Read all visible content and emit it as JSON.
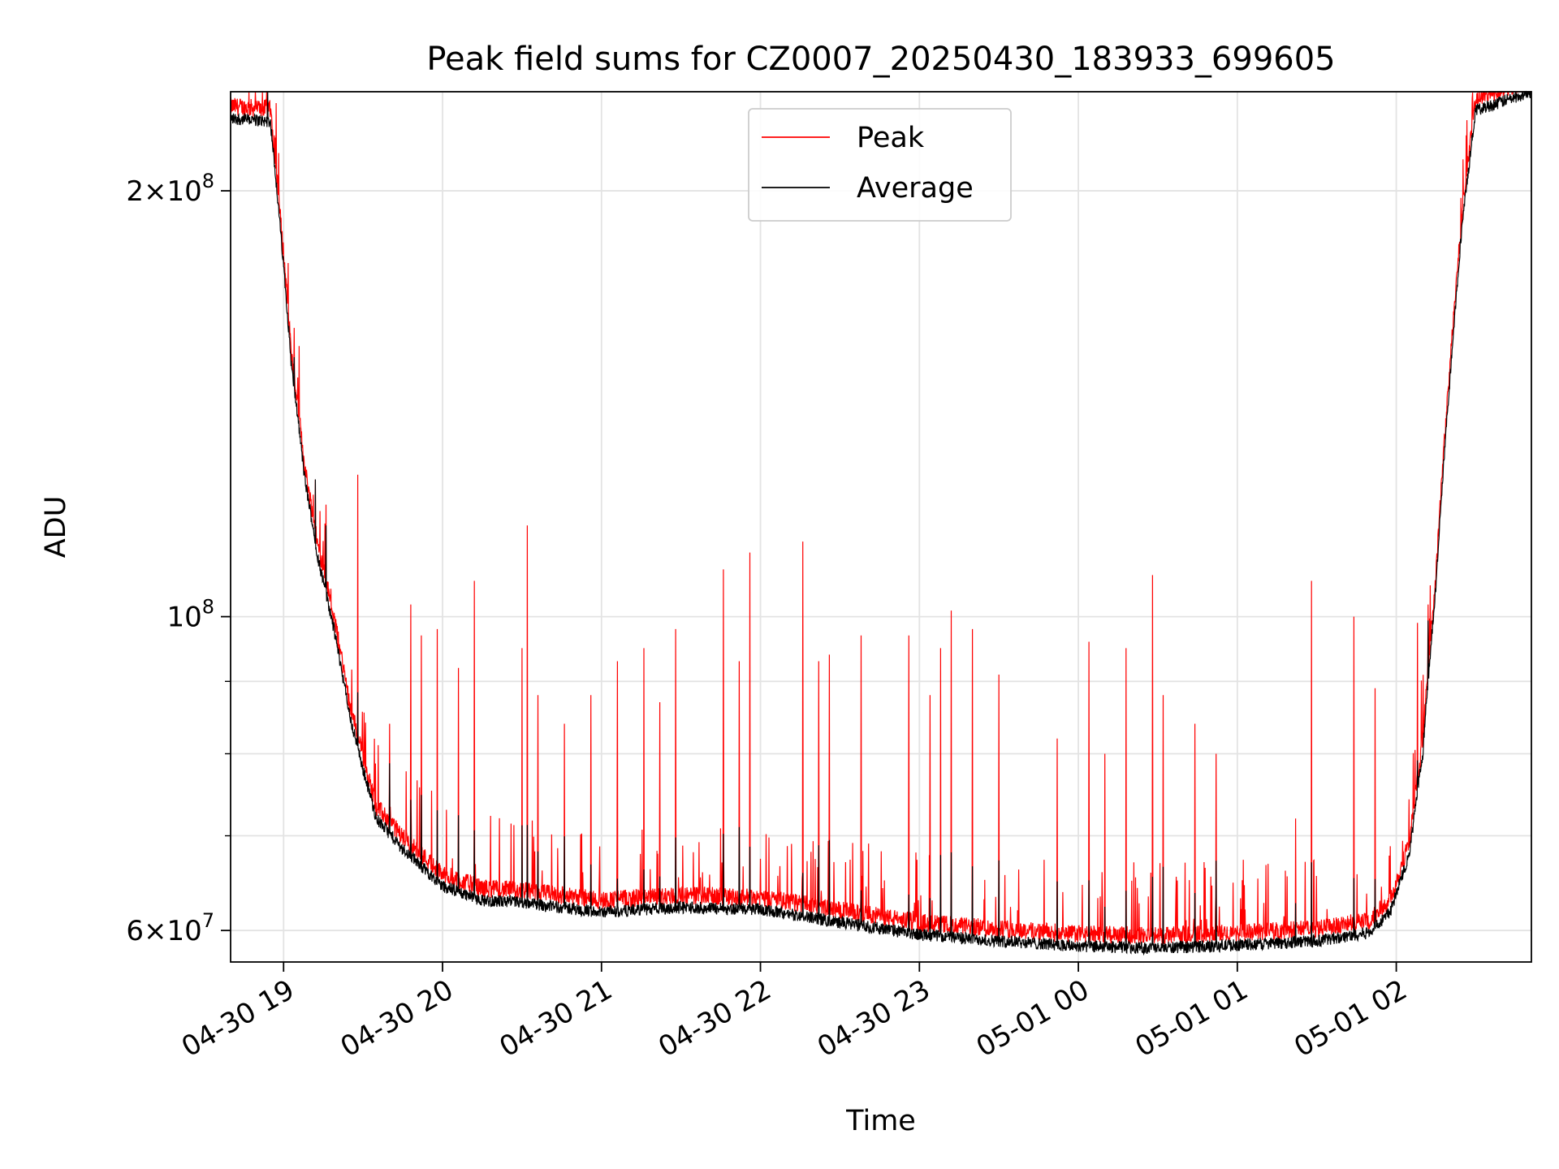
{
  "chart_data": {
    "type": "line",
    "title": "Peak field sums for CZ0007_20250430_183933_699605",
    "xlabel": "Time",
    "ylabel": "ADU",
    "yscale": "log",
    "xlim": [
      "2025-04-30T18:40",
      "2025-05-01T02:51"
    ],
    "ylim": [
      57000000,
      235000000
    ],
    "xticks": [
      "04-30 19",
      "04-30 20",
      "04-30 21",
      "04-30 22",
      "04-30 23",
      "05-01 00",
      "05-01 01",
      "05-01 02"
    ],
    "xtick_values": [
      "2025-04-30T19:00",
      "2025-04-30T20:00",
      "2025-04-30T21:00",
      "2025-04-30T22:00",
      "2025-04-30T23:00",
      "2025-05-01T00:00",
      "2025-05-01T01:00",
      "2025-05-01T02:00"
    ],
    "yticks": [
      {
        "value": 60000000,
        "mantissa": "6",
        "exponent": "7"
      },
      {
        "value": 100000000,
        "mantissa": "",
        "exponent": "8"
      },
      {
        "value": 200000000,
        "mantissa": "2",
        "exponent": "8"
      }
    ],
    "grid": true,
    "legend_position": "upper center",
    "series": [
      {
        "name": "Average",
        "color": "#000000",
        "baseline": [
          [
            "2025-04-30T18:40",
            225000000
          ],
          [
            "2025-04-30T18:55",
            224000000
          ],
          [
            "2025-04-30T18:58",
            195000000
          ],
          [
            "2025-04-30T19:03",
            150000000
          ],
          [
            "2025-04-30T19:08",
            125000000
          ],
          [
            "2025-04-30T19:13",
            110000000
          ],
          [
            "2025-04-30T19:19",
            98000000
          ],
          [
            "2025-04-30T19:25",
            85000000
          ],
          [
            "2025-04-30T19:30",
            78000000
          ],
          [
            "2025-04-30T19:35",
            72000000
          ],
          [
            "2025-04-30T19:45",
            68500000
          ],
          [
            "2025-04-30T20:00",
            64500000
          ],
          [
            "2025-04-30T20:15",
            63000000
          ],
          [
            "2025-04-30T20:30",
            62800000
          ],
          [
            "2025-04-30T21:00",
            61800000
          ],
          [
            "2025-04-30T21:30",
            62300000
          ],
          [
            "2025-04-30T22:00",
            62100000
          ],
          [
            "2025-04-30T22:30",
            60800000
          ],
          [
            "2025-04-30T23:00",
            59600000
          ],
          [
            "2025-04-30T23:30",
            59000000
          ],
          [
            "2025-05-01T00:00",
            58500000
          ],
          [
            "2025-05-01T00:30",
            58300000
          ],
          [
            "2025-05-01T01:00",
            58600000
          ],
          [
            "2025-05-01T01:30",
            59000000
          ],
          [
            "2025-05-01T01:50",
            59800000
          ],
          [
            "2025-05-01T01:58",
            62000000
          ],
          [
            "2025-05-01T02:05",
            68000000
          ],
          [
            "2025-05-01T02:10",
            80000000
          ],
          [
            "2025-05-01T02:15",
            105000000
          ],
          [
            "2025-05-01T02:20",
            145000000
          ],
          [
            "2025-05-01T02:25",
            190000000
          ],
          [
            "2025-05-01T02:30",
            228000000
          ],
          [
            "2025-05-01T02:51",
            235000000
          ]
        ]
      },
      {
        "name": "Peak",
        "color": "#ff0000",
        "spikes": [
          [
            "2025-04-30T18:54",
            230000000
          ],
          [
            "2025-04-30T18:59",
            205000000
          ],
          [
            "2025-04-30T19:04",
            160000000
          ],
          [
            "2025-04-30T19:12",
            125000000
          ],
          [
            "2025-04-30T19:16",
            120000000
          ],
          [
            "2025-04-30T19:19",
            106000000
          ],
          [
            "2025-04-30T19:21",
            124000000
          ],
          [
            "2025-04-30T19:25",
            115000000
          ],
          [
            "2025-04-30T19:28",
            126000000
          ],
          [
            "2025-04-30T19:33",
            112000000
          ],
          [
            "2025-04-30T19:35",
            137000000
          ],
          [
            "2025-04-30T19:40",
            84000000
          ],
          [
            "2025-04-30T19:48",
            102000000
          ],
          [
            "2025-04-30T19:52",
            97000000
          ],
          [
            "2025-04-30T19:55",
            104000000
          ],
          [
            "2025-04-30T19:58",
            98000000
          ],
          [
            "2025-04-30T20:01",
            120000000
          ],
          [
            "2025-04-30T20:06",
            92000000
          ],
          [
            "2025-04-30T20:12",
            106000000
          ],
          [
            "2025-04-30T20:15",
            108000000
          ],
          [
            "2025-04-30T20:19",
            96000000
          ],
          [
            "2025-04-30T20:25",
            90000000
          ],
          [
            "2025-04-30T20:30",
            95000000
          ],
          [
            "2025-04-30T20:32",
            116000000
          ],
          [
            "2025-04-30T20:36",
            88000000
          ],
          [
            "2025-04-30T20:41",
            102000000
          ],
          [
            "2025-04-30T20:46",
            84000000
          ],
          [
            "2025-04-30T20:51",
            105000000
          ],
          [
            "2025-04-30T20:56",
            88000000
          ],
          [
            "2025-04-30T21:01",
            104000000
          ],
          [
            "2025-04-30T21:06",
            93000000
          ],
          [
            "2025-04-30T21:11",
            101000000
          ],
          [
            "2025-04-30T21:16",
            95000000
          ],
          [
            "2025-04-30T21:22",
            87000000
          ],
          [
            "2025-04-30T21:28",
            98000000
          ],
          [
            "2025-04-30T21:33",
            108000000
          ],
          [
            "2025-04-30T21:37",
            92000000
          ],
          [
            "2025-04-30T21:41",
            98000000
          ],
          [
            "2025-04-30T21:46",
            108000000
          ],
          [
            "2025-04-30T21:52",
            93000000
          ],
          [
            "2025-04-30T21:56",
            111000000
          ],
          [
            "2025-04-30T21:59",
            98000000
          ],
          [
            "2025-04-30T22:05",
            87000000
          ],
          [
            "2025-04-30T22:11",
            96000000
          ],
          [
            "2025-04-30T22:16",
            113000000
          ],
          [
            "2025-04-30T22:22",
            93000000
          ],
          [
            "2025-04-30T22:26",
            94000000
          ],
          [
            "2025-04-30T22:31",
            101000000
          ],
          [
            "2025-04-30T22:38",
            97000000
          ],
          [
            "2025-04-30T22:43",
            117000000
          ],
          [
            "2025-04-30T22:49",
            92000000
          ],
          [
            "2025-04-30T22:56",
            97000000
          ],
          [
            "2025-04-30T23:04",
            88000000
          ],
          [
            "2025-04-30T23:08",
            95000000
          ],
          [
            "2025-04-30T23:12",
            101000000
          ],
          [
            "2025-04-30T23:17",
            115000000
          ],
          [
            "2025-04-30T23:20",
            98000000
          ],
          [
            "2025-04-30T23:25",
            120000000
          ],
          [
            "2025-04-30T23:30",
            91000000
          ],
          [
            "2025-04-30T23:35",
            86000000
          ],
          [
            "2025-04-30T23:41",
            104000000
          ],
          [
            "2025-04-30T23:47",
            85000000
          ],
          [
            "2025-04-30T23:52",
            82000000
          ],
          [
            "2025-04-30T23:57",
            78000000
          ],
          [
            "2025-05-01T00:04",
            96000000
          ],
          [
            "2025-05-01T00:10",
            80000000
          ],
          [
            "2025-05-01T00:18",
            95000000
          ],
          [
            "2025-05-01T00:23",
            110000000
          ],
          [
            "2025-05-01T00:28",
            107000000
          ],
          [
            "2025-05-01T00:32",
            88000000
          ],
          [
            "2025-05-01T00:37",
            74000000
          ],
          [
            "2025-05-01T00:44",
            84000000
          ],
          [
            "2025-05-01T00:52",
            80000000
          ],
          [
            "2025-05-01T00:57",
            108000000
          ],
          [
            "2025-05-01T01:01",
            87000000
          ],
          [
            "2025-05-01T01:07",
            110000000
          ],
          [
            "2025-05-01T01:13",
            81000000
          ],
          [
            "2025-05-01T01:22",
            72000000
          ],
          [
            "2025-05-01T01:28",
            106000000
          ],
          [
            "2025-05-01T01:35",
            85000000
          ],
          [
            "2025-05-01T01:39",
            92000000
          ],
          [
            "2025-05-01T01:44",
            100000000
          ],
          [
            "2025-05-01T01:52",
            89000000
          ],
          [
            "2025-05-01T02:08",
            99000000
          ],
          [
            "2025-05-01T02:12",
            102000000
          ],
          [
            "2025-05-01T02:17",
            112000000
          ],
          [
            "2025-05-01T02:21",
            120000000
          ]
        ]
      }
    ]
  }
}
